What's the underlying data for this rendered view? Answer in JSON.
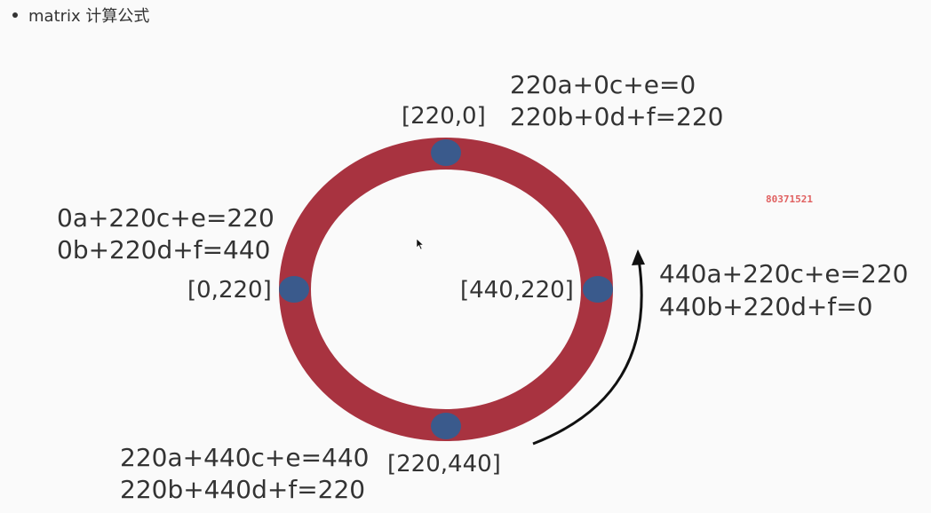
{
  "header": {
    "bullet_text": "matrix 计算公式"
  },
  "diagram": {
    "ring_color": "#a83340",
    "point_color": "#3a5a8c",
    "arrow_color": "#111111",
    "points": [
      {
        "label": "[220,0]",
        "eq1": "220a+0c+e=0",
        "eq2": "220b+0d+f=220"
      },
      {
        "label": "[0,220]",
        "eq1": "0a+220c+e=220",
        "eq2": "0b+220d+f=440"
      },
      {
        "label": "[440,220]",
        "eq1": "440a+220c+e=220",
        "eq2": "440b+220d+f=0"
      },
      {
        "label": "[220,440]",
        "eq1": "220a+440c+e=440",
        "eq2": "220b+440d+f=220"
      }
    ]
  },
  "watermark": {
    "text": "80371521",
    "color": "#e06060"
  }
}
